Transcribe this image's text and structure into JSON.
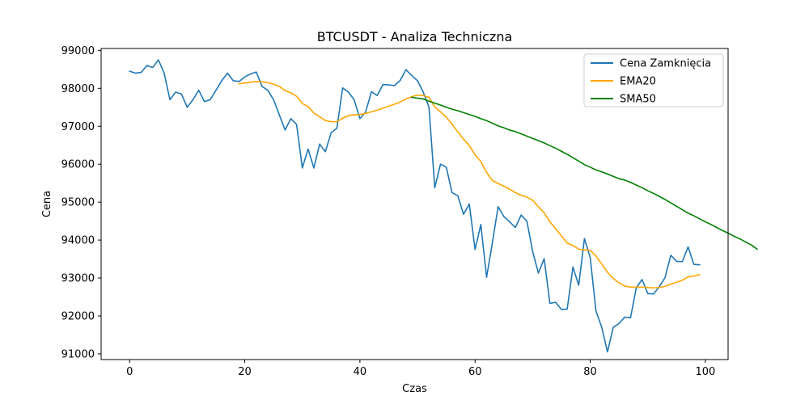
{
  "chart_data": {
    "type": "line",
    "title": "BTCUSDT - Analiza Techniczna",
    "xlabel": "Czas",
    "ylabel": "Cena",
    "xlim": [
      -4.95,
      103.95
    ],
    "ylim": [
      90850,
      99050
    ],
    "xticks": [
      0,
      20,
      40,
      60,
      80,
      100
    ],
    "yticks": [
      91000,
      92000,
      93000,
      94000,
      95000,
      96000,
      97000,
      98000,
      99000
    ],
    "grid": false,
    "legend_position": "top-right",
    "series": [
      {
        "name": "Cena Zamknięcia",
        "color": "#1f77b4",
        "x_start": 0,
        "values": [
          98450,
          98400,
          98420,
          98600,
          98550,
          98750,
          98400,
          97700,
          97900,
          97850,
          97500,
          97700,
          97950,
          97650,
          97700,
          97950,
          98200,
          98400,
          98200,
          98180,
          98300,
          98380,
          98430,
          98050,
          97950,
          97700,
          97300,
          96900,
          97200,
          97050,
          95900,
          96400,
          95900,
          96530,
          96330,
          96830,
          96950,
          98010,
          97900,
          97700,
          97200,
          97380,
          97910,
          97810,
          98100,
          98090,
          98070,
          98210,
          98490,
          98340,
          98200,
          97900,
          97500,
          95380,
          96000,
          95920,
          95250,
          95170,
          94680,
          94950,
          93750,
          94410,
          93020,
          93920,
          94880,
          94620,
          94480,
          94330,
          94660,
          94500,
          93700,
          93130,
          93510,
          92330,
          92360,
          92170,
          92180,
          93290,
          92810,
          94040,
          93540,
          92130,
          91700,
          91050,
          91700,
          91800,
          91970,
          91950,
          92740,
          92960,
          92590,
          92580,
          92770,
          93010,
          93600,
          93440,
          93430,
          93820,
          93360,
          93350
        ]
      },
      {
        "name": "EMA20",
        "color": "#ffa500",
        "x_start": 19,
        "values": [
          98120,
          98140,
          98160,
          98180,
          98170,
          98150,
          98110,
          98050,
          97940,
          97880,
          97790,
          97600,
          97520,
          97350,
          97250,
          97150,
          97120,
          97120,
          97210,
          97280,
          97300,
          97310,
          97340,
          97380,
          97420,
          97480,
          97530,
          97580,
          97640,
          97720,
          97780,
          97820,
          97810,
          97760,
          97510,
          97380,
          97240,
          97050,
          96850,
          96660,
          96490,
          96250,
          96070,
          95780,
          95570,
          95490,
          95420,
          95340,
          95250,
          95180,
          95130,
          95050,
          94880,
          94720,
          94480,
          94300,
          94110,
          93920,
          93860,
          93760,
          93740,
          93730,
          93580,
          93370,
          93150,
          92990,
          92870,
          92790,
          92760,
          92760,
          92760,
          92750,
          92740,
          92750,
          92780,
          92840,
          92890,
          92940,
          93030,
          93050,
          93090
        ]
      },
      {
        "name": "SMA50",
        "color": "#008000",
        "x_start": 49,
        "values": [
          97760,
          97740,
          97720,
          97660,
          97610,
          97560,
          97500,
          97450,
          97410,
          97360,
          97310,
          97260,
          97200,
          97150,
          97080,
          97010,
          96960,
          96900,
          96860,
          96800,
          96740,
          96680,
          96620,
          96560,
          96490,
          96420,
          96340,
          96260,
          96170,
          96080,
          95990,
          95920,
          95850,
          95800,
          95740,
          95680,
          95620,
          95580,
          95520,
          95450,
          95380,
          95300,
          95230,
          95150,
          95070,
          94980,
          94890,
          94800,
          94710,
          94640,
          94560,
          94480,
          94410,
          94330,
          94250,
          94180,
          94100,
          94030,
          93950,
          93870,
          93760
        ]
      }
    ]
  }
}
